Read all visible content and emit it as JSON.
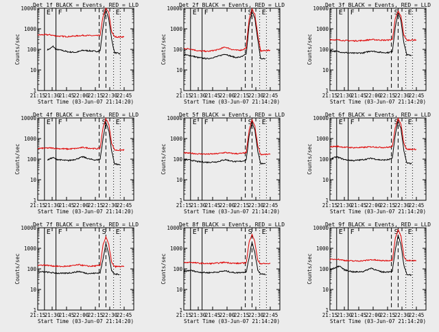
{
  "figure": {
    "xlabel": "Start Time (03-Jun-07 21:14:20)",
    "ylabel": "Counts/sec",
    "x_ticks": [
      "21:15",
      "21:30",
      "21:45",
      "22:00",
      "22:15",
      "22:30",
      "22:45"
    ],
    "y_ticks": [
      "1",
      "10",
      "100",
      "1000",
      "10000"
    ],
    "region_letters": [
      "E",
      "F",
      "S",
      "E"
    ]
  },
  "colors": {
    "events": "#000000",
    "lld": "#e00000",
    "background": "#ececec"
  },
  "chart_data": [
    {
      "type": "line",
      "title": "Det 1f BLACK = Events, RED = LLD",
      "xlabel": "Start Time (03-Jun-07 21:14:20)",
      "ylabel": "Counts/sec",
      "ylim": [
        1,
        10000
      ],
      "log_y": true,
      "xlim_minutes": [
        "21:14",
        "22:55"
      ],
      "markers": {
        "solid": [
          "21:22",
          "21:34"
        ],
        "dashed": [
          "22:19",
          "22:26"
        ],
        "dotted": [
          "22:34",
          "22:41"
        ]
      },
      "series": [
        {
          "name": "BLACK = Events",
          "color": "#000000",
          "x": [
            "21:25",
            "21:28",
            "21:31",
            "21:34",
            "21:40",
            "21:47",
            "21:55",
            "22:02",
            "22:09",
            "22:16",
            "22:20",
            "22:23",
            "22:26",
            "22:29",
            "22:32",
            "22:35",
            "22:38",
            "22:41"
          ],
          "y": [
            95,
            110,
            140,
            100,
            90,
            75,
            72,
            90,
            85,
            80,
            85,
            1200,
            8000,
            3000,
            300,
            70,
            65,
            60
          ]
        },
        {
          "name": "RED = LLD",
          "color": "#e00000",
          "x": [
            "21:15",
            "21:22",
            "21:28",
            "21:34",
            "21:40",
            "21:47",
            "21:55",
            "22:02",
            "22:09",
            "22:16",
            "22:20",
            "22:23",
            "22:26",
            "22:29",
            "22:32",
            "22:35",
            "22:38",
            "22:45"
          ],
          "y": [
            500,
            520,
            510,
            450,
            430,
            420,
            450,
            480,
            470,
            460,
            480,
            4000,
            10000,
            6000,
            700,
            420,
            400,
            410
          ]
        }
      ]
    },
    {
      "type": "line",
      "title": "Det 2f BLACK = Events, RED = LLD",
      "xlabel": "Start Time (03-Jun-07 21:14:20)",
      "ylabel": "Counts/sec",
      "ylim": [
        1,
        10000
      ],
      "log_y": true,
      "markers": {
        "solid": [
          "21:22",
          "21:34"
        ],
        "dashed": [
          "22:19",
          "22:26"
        ],
        "dotted": [
          "22:34",
          "22:41"
        ]
      },
      "series": [
        {
          "name": "BLACK = Events",
          "color": "#000000",
          "x": [
            "21:15",
            "21:22",
            "21:30",
            "21:40",
            "21:50",
            "21:58",
            "22:05",
            "22:10",
            "22:16",
            "22:20",
            "22:23",
            "22:26",
            "22:29",
            "22:32",
            "22:35",
            "22:40"
          ],
          "y": [
            55,
            50,
            40,
            35,
            45,
            60,
            45,
            40,
            45,
            60,
            1500,
            7000,
            3000,
            300,
            35,
            35
          ]
        },
        {
          "name": "RED = LLD",
          "color": "#e00000",
          "x": [
            "21:15",
            "21:22",
            "21:30",
            "21:40",
            "21:50",
            "21:58",
            "22:05",
            "22:10",
            "22:16",
            "22:20",
            "22:23",
            "22:26",
            "22:29",
            "22:32",
            "22:35",
            "22:45"
          ],
          "y": [
            110,
            105,
            85,
            80,
            95,
            130,
            100,
            90,
            95,
            120,
            3000,
            9000,
            5000,
            500,
            85,
            90
          ]
        }
      ]
    },
    {
      "type": "line",
      "title": "Det 3f BLACK = Events, RED = LLD",
      "xlabel": "Start Time (03-Jun-07 21:14:20)",
      "ylabel": "Counts/sec",
      "ylim": [
        1,
        10000
      ],
      "log_y": true,
      "markers": {
        "solid": [
          "21:22",
          "21:34"
        ],
        "dashed": [
          "22:19",
          "22:26"
        ],
        "dotted": [
          "22:34",
          "22:41"
        ]
      },
      "series": [
        {
          "name": "BLACK = Events",
          "color": "#000000",
          "x": [
            "21:15",
            "21:22",
            "21:30",
            "21:40",
            "21:50",
            "21:58",
            "22:05",
            "22:10",
            "22:16",
            "22:20",
            "22:23",
            "22:26",
            "22:29",
            "22:32",
            "22:35",
            "22:40"
          ],
          "y": [
            85,
            80,
            70,
            65,
            68,
            85,
            75,
            70,
            70,
            80,
            1200,
            6000,
            2500,
            200,
            55,
            50
          ]
        },
        {
          "name": "RED = LLD",
          "color": "#e00000",
          "x": [
            "21:15",
            "21:22",
            "21:30",
            "21:40",
            "21:50",
            "21:58",
            "22:05",
            "22:10",
            "22:16",
            "22:20",
            "22:23",
            "22:26",
            "22:29",
            "22:32",
            "22:35",
            "22:45"
          ],
          "y": [
            300,
            290,
            270,
            260,
            270,
            300,
            290,
            280,
            285,
            300,
            3000,
            7000,
            4000,
            500,
            280,
            290
          ]
        }
      ]
    },
    {
      "type": "line",
      "title": "Det 4f BLACK = Events, RED = LLD",
      "xlabel": "Start Time (03-Jun-07 21:14:20)",
      "ylabel": "Counts/sec",
      "ylim": [
        1,
        10000
      ],
      "log_y": true,
      "markers": {
        "solid": [
          "21:22",
          "21:34"
        ],
        "dashed": [
          "22:19",
          "22:26"
        ],
        "dotted": [
          "22:34",
          "22:41"
        ]
      },
      "series": [
        {
          "name": "BLACK = Events",
          "color": "#000000",
          "x": [
            "21:25",
            "21:28",
            "21:31",
            "21:34",
            "21:40",
            "21:47",
            "21:55",
            "22:02",
            "22:09",
            "22:16",
            "22:20",
            "22:23",
            "22:26",
            "22:29",
            "22:32",
            "22:35",
            "22:38",
            "22:41"
          ],
          "y": [
            90,
            105,
            120,
            100,
            90,
            85,
            100,
            130,
            100,
            90,
            100,
            1000,
            6000,
            2500,
            250,
            60,
            55,
            50
          ]
        },
        {
          "name": "RED = LLD",
          "color": "#e00000",
          "x": [
            "21:15",
            "21:22",
            "21:28",
            "21:34",
            "21:40",
            "21:47",
            "21:55",
            "22:02",
            "22:09",
            "22:16",
            "22:20",
            "22:23",
            "22:26",
            "22:29",
            "22:32",
            "22:35",
            "22:38",
            "22:45"
          ],
          "y": [
            330,
            340,
            350,
            330,
            320,
            310,
            330,
            370,
            340,
            320,
            340,
            3500,
            9000,
            5000,
            600,
            280,
            270,
            280
          ]
        }
      ]
    },
    {
      "type": "line",
      "title": "Det 5f BLACK = Events, RED = LLD",
      "xlabel": "Start Time (03-Jun-07 21:14:20)",
      "ylabel": "Counts/sec",
      "ylim": [
        1,
        10000
      ],
      "log_y": true,
      "markers": {
        "solid": [
          "21:22",
          "21:34"
        ],
        "dashed": [
          "22:19",
          "22:26"
        ],
        "dotted": [
          "22:34",
          "22:41"
        ]
      },
      "series": [
        {
          "name": "BLACK = Events",
          "color": "#000000",
          "x": [
            "21:15",
            "21:22",
            "21:30",
            "21:40",
            "21:50",
            "21:58",
            "22:05",
            "22:10",
            "22:16",
            "22:20",
            "22:23",
            "22:26",
            "22:29",
            "22:32",
            "22:35",
            "22:40"
          ],
          "y": [
            95,
            90,
            75,
            70,
            75,
            95,
            80,
            75,
            80,
            95,
            1300,
            6500,
            2500,
            250,
            60,
            60
          ]
        },
        {
          "name": "RED = LLD",
          "color": "#e00000",
          "x": [
            "21:15",
            "21:22",
            "21:30",
            "21:40",
            "21:50",
            "21:58",
            "22:05",
            "22:10",
            "22:16",
            "22:20",
            "22:23",
            "22:26",
            "22:29",
            "22:32",
            "22:35",
            "22:45"
          ],
          "y": [
            200,
            195,
            180,
            175,
            185,
            210,
            190,
            185,
            190,
            210,
            2500,
            8000,
            4000,
            450,
            170,
            170
          ]
        }
      ]
    },
    {
      "type": "line",
      "title": "Det 6f BLACK = Events, RED = LLD",
      "xlabel": "Start Time (03-Jun-07 21:14:20)",
      "ylabel": "Counts/sec",
      "ylim": [
        1,
        10000
      ],
      "log_y": true,
      "markers": {
        "solid": [
          "21:22",
          "21:34"
        ],
        "dashed": [
          "22:19",
          "22:26"
        ],
        "dotted": [
          "22:34",
          "22:41"
        ]
      },
      "series": [
        {
          "name": "BLACK = Events",
          "color": "#000000",
          "x": [
            "21:15",
            "21:22",
            "21:30",
            "21:40",
            "21:50",
            "21:58",
            "22:05",
            "22:10",
            "22:16",
            "22:20",
            "22:23",
            "22:26",
            "22:29",
            "22:32",
            "22:35",
            "22:40"
          ],
          "y": [
            100,
            130,
            95,
            85,
            95,
            110,
            95,
            90,
            95,
            110,
            1500,
            7000,
            3000,
            250,
            65,
            60
          ]
        },
        {
          "name": "RED = LLD",
          "color": "#e00000",
          "x": [
            "21:15",
            "21:22",
            "21:30",
            "21:40",
            "21:50",
            "21:58",
            "22:05",
            "22:10",
            "22:16",
            "22:20",
            "22:23",
            "22:26",
            "22:29",
            "22:32",
            "22:35",
            "22:45"
          ],
          "y": [
            400,
            420,
            380,
            360,
            370,
            400,
            380,
            370,
            380,
            400,
            3500,
            9000,
            5000,
            600,
            300,
            300
          ]
        }
      ]
    },
    {
      "type": "line",
      "title": "Det 7f BLACK = Events, RED = LLD",
      "xlabel": "Start Time (03-Jun-07 21:14:20)",
      "ylabel": "Counts/sec",
      "ylim": [
        1,
        10000
      ],
      "log_y": true,
      "markers": {
        "solid": [
          "21:22",
          "21:34"
        ],
        "dashed": [
          "22:19",
          "22:26"
        ],
        "dotted": [
          "22:34",
          "22:41"
        ]
      },
      "series": [
        {
          "name": "BLACK = Events",
          "color": "#000000",
          "x": [
            "21:15",
            "21:22",
            "21:30",
            "21:40",
            "21:50",
            "21:58",
            "22:05",
            "22:10",
            "22:16",
            "22:20",
            "22:23",
            "22:26",
            "22:29",
            "22:32",
            "22:35",
            "22:40"
          ],
          "y": [
            70,
            72,
            65,
            60,
            65,
            75,
            62,
            60,
            62,
            65,
            300,
            1800,
            500,
            80,
            55,
            55
          ]
        },
        {
          "name": "RED = LLD",
          "color": "#e00000",
          "x": [
            "21:15",
            "21:22",
            "21:30",
            "21:40",
            "21:50",
            "21:58",
            "22:05",
            "22:10",
            "22:16",
            "22:20",
            "22:23",
            "22:26",
            "22:29",
            "22:32",
            "22:35",
            "22:45"
          ],
          "y": [
            150,
            155,
            140,
            130,
            140,
            160,
            140,
            135,
            140,
            150,
            1500,
            3500,
            1500,
            200,
            130,
            130
          ]
        }
      ]
    },
    {
      "type": "line",
      "title": "Det 8f BLACK = Events, RED = LLD",
      "xlabel": "Start Time (03-Jun-07 21:14:20)",
      "ylabel": "Counts/sec",
      "ylim": [
        1,
        10000
      ],
      "log_y": true,
      "markers": {
        "solid": [
          "21:22",
          "21:34"
        ],
        "dashed": [
          "22:19",
          "22:26"
        ],
        "dotted": [
          "22:34",
          "22:41"
        ]
      },
      "series": [
        {
          "name": "BLACK = Events",
          "color": "#000000",
          "x": [
            "21:15",
            "21:22",
            "21:30",
            "21:40",
            "21:50",
            "21:58",
            "22:05",
            "22:10",
            "22:16",
            "22:20",
            "22:23",
            "22:26",
            "22:29",
            "22:32",
            "22:35",
            "22:40"
          ],
          "y": [
            75,
            85,
            70,
            65,
            70,
            80,
            68,
            65,
            68,
            72,
            350,
            2000,
            600,
            90,
            55,
            55
          ]
        },
        {
          "name": "RED = LLD",
          "color": "#e00000",
          "x": [
            "21:15",
            "21:22",
            "21:30",
            "21:40",
            "21:50",
            "21:58",
            "22:05",
            "22:10",
            "22:16",
            "22:20",
            "22:23",
            "22:26",
            "22:29",
            "22:32",
            "22:35",
            "22:45"
          ],
          "y": [
            200,
            210,
            190,
            180,
            190,
            210,
            190,
            185,
            190,
            200,
            2000,
            5000,
            2000,
            250,
            180,
            180
          ]
        }
      ]
    },
    {
      "type": "line",
      "title": "Det 9f BLACK = Events, RED = LLD",
      "xlabel": "Start Time (03-Jun-07 21:14:20)",
      "ylabel": "Counts/sec",
      "ylim": [
        1,
        10000
      ],
      "log_y": true,
      "markers": {
        "solid": [
          "21:22",
          "21:34"
        ],
        "dashed": [
          "22:19",
          "22:26"
        ],
        "dotted": [
          "22:34",
          "22:41"
        ]
      },
      "series": [
        {
          "name": "BLACK = Events",
          "color": "#000000",
          "x": [
            "21:15",
            "21:20",
            "21:25",
            "21:30",
            "21:40",
            "21:50",
            "21:58",
            "22:05",
            "22:10",
            "22:16",
            "22:20",
            "22:23",
            "22:26",
            "22:29",
            "22:32",
            "22:35",
            "22:40"
          ],
          "y": [
            90,
            110,
            140,
            90,
            70,
            75,
            110,
            80,
            70,
            72,
            80,
            800,
            4000,
            1500,
            150,
            55,
            50
          ]
        },
        {
          "name": "RED = LLD",
          "color": "#e00000",
          "x": [
            "21:15",
            "21:22",
            "21:30",
            "21:40",
            "21:50",
            "21:58",
            "22:05",
            "22:10",
            "22:16",
            "22:20",
            "22:23",
            "22:26",
            "22:29",
            "22:32",
            "22:35",
            "22:45"
          ],
          "y": [
            280,
            300,
            260,
            240,
            250,
            280,
            260,
            250,
            255,
            270,
            3000,
            8000,
            4000,
            400,
            250,
            250
          ]
        }
      ]
    }
  ]
}
